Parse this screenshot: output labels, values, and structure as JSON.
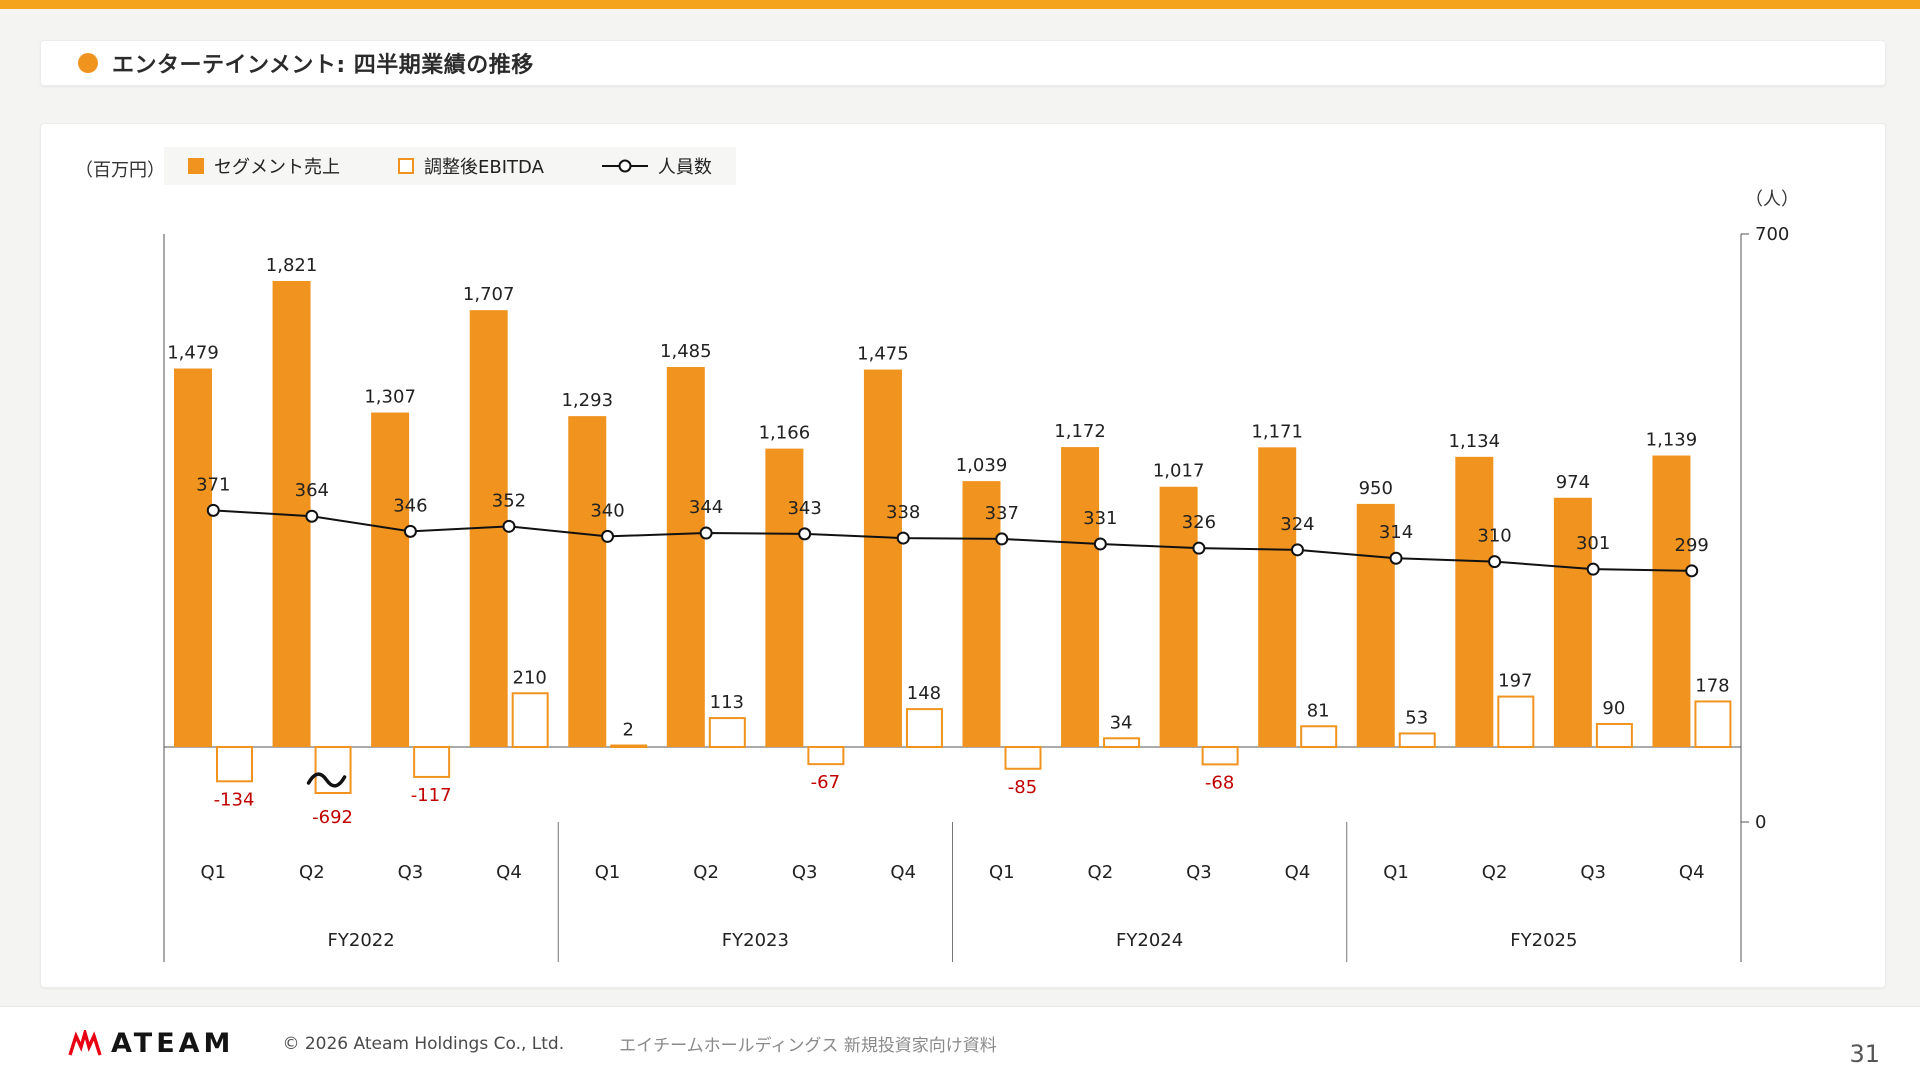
{
  "accent": {
    "bar_color": "#F5A21D"
  },
  "title": {
    "text": "エンターテインメント: 四半期業績の推移"
  },
  "chart": {
    "unit_left": "（百万円）",
    "unit_right": "（人）",
    "legend": [
      {
        "label": "セグメント売上"
      },
      {
        "label": "調整後EBITDA"
      },
      {
        "label": "人員数"
      }
    ]
  },
  "chart_data": {
    "type": "bar",
    "categories": [
      "Q1",
      "Q2",
      "Q3",
      "Q4",
      "Q1",
      "Q2",
      "Q3",
      "Q4",
      "Q1",
      "Q2",
      "Q3",
      "Q4",
      "Q1",
      "Q2",
      "Q3",
      "Q4"
    ],
    "group_labels": [
      "FY2022",
      "FY2023",
      "FY2024",
      "FY2025"
    ],
    "series": [
      {
        "name": "セグメント売上",
        "type": "bar",
        "style": "filled",
        "color": "#F0941F",
        "values": [
          1479,
          1821,
          1307,
          1707,
          1293,
          1485,
          1166,
          1475,
          1039,
          1172,
          1017,
          1171,
          950,
          1134,
          974,
          1139
        ]
      },
      {
        "name": "調整後EBITDA",
        "type": "bar",
        "style": "outline",
        "color": "#F0941F",
        "values": [
          -134,
          -692,
          -117,
          210,
          2,
          113,
          -67,
          148,
          -85,
          34,
          -68,
          81,
          53,
          197,
          90,
          178
        ],
        "axis_break_note": "bar for -692 truncated with break squiggle"
      },
      {
        "name": "人員数",
        "type": "line",
        "color": "#111111",
        "values": [
          371,
          364,
          346,
          352,
          340,
          344,
          343,
          338,
          337,
          331,
          326,
          324,
          314,
          310,
          301,
          299
        ]
      }
    ],
    "right_ylim": [
      0,
      700
    ],
    "left_unit": "百万円",
    "right_unit": "人",
    "negative_label_color": "#C00000",
    "grid": false,
    "legend_position": "top-left"
  },
  "footer": {
    "logo_text": "ATEAM",
    "copyright": "© 2026 Ateam Holdings Co., Ltd.",
    "doc_title": "エイチームホールディングス 新規投資家向け資料",
    "page_number": "31"
  }
}
